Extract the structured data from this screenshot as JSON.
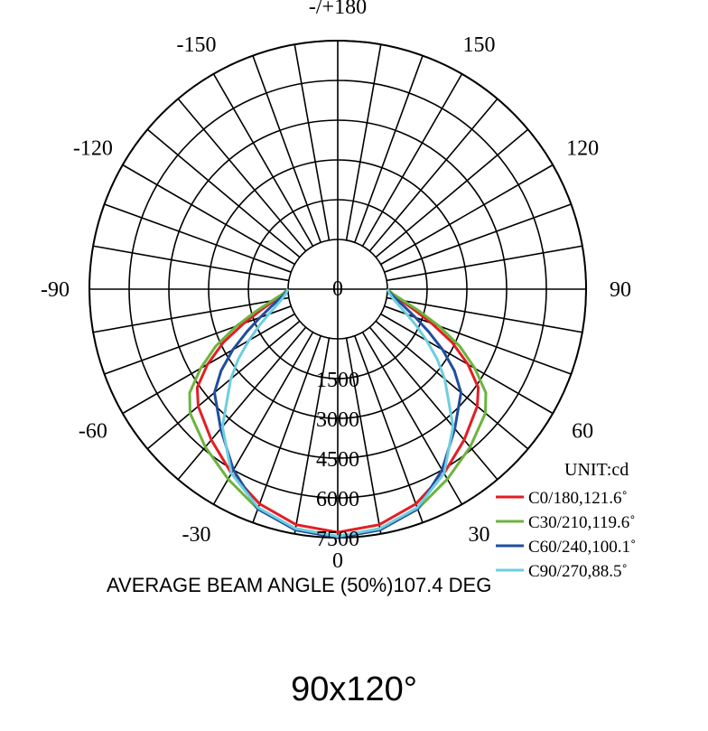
{
  "chart_data": {
    "type": "polar",
    "unit_label": "UNIT:cd",
    "angle_labels": [
      {
        "angle": 180,
        "text": "-/+180"
      },
      {
        "angle": 150,
        "text": "150"
      },
      {
        "angle": -150,
        "text": "-150"
      },
      {
        "angle": 120,
        "text": "120"
      },
      {
        "angle": -120,
        "text": "-120"
      },
      {
        "angle": 90,
        "text": "90"
      },
      {
        "angle": -90,
        "text": "-90"
      },
      {
        "angle": 60,
        "text": "60"
      },
      {
        "angle": -60,
        "text": "-60"
      },
      {
        "angle": 30,
        "text": "30"
      },
      {
        "angle": -30,
        "text": "-30"
      },
      {
        "angle": 0,
        "text": "0"
      }
    ],
    "radial_ticks": [
      "0",
      "1500",
      "3000",
      "4500",
      "6000",
      "7500"
    ],
    "r_max": 7500,
    "angle_grid_step": 10,
    "grid": true,
    "legend_position": "bottom-right",
    "beam_angle_text": "AVERAGE BEAM ANGLE (50%)107.4 DEG",
    "caption": "90x120°",
    "series": [
      {
        "name": "C0/180,121.6˚",
        "color": "#e31e24",
        "points": [
          [
            0,
            7300
          ],
          [
            10,
            7150
          ],
          [
            20,
            6750
          ],
          [
            30,
            6150
          ],
          [
            40,
            5550
          ],
          [
            50,
            5000
          ],
          [
            55,
            4600
          ],
          [
            60,
            3800
          ],
          [
            65,
            2900
          ],
          [
            70,
            1900
          ],
          [
            75,
            1100
          ],
          [
            80,
            550
          ],
          [
            85,
            200
          ],
          [
            90,
            0
          ]
        ]
      },
      {
        "name": "C30/210,119.6˚",
        "color": "#6db33f",
        "points": [
          [
            0,
            7450
          ],
          [
            10,
            7300
          ],
          [
            20,
            6950
          ],
          [
            30,
            6400
          ],
          [
            40,
            5900
          ],
          [
            50,
            5400
          ],
          [
            55,
            4950
          ],
          [
            60,
            4100
          ],
          [
            65,
            3200
          ],
          [
            70,
            2200
          ],
          [
            75,
            1300
          ],
          [
            80,
            650
          ],
          [
            85,
            220
          ],
          [
            90,
            0
          ]
        ]
      },
      {
        "name": "C60/240,100.1˚",
        "color": "#1f4e9c",
        "points": [
          [
            0,
            7500
          ],
          [
            10,
            7350
          ],
          [
            20,
            6950
          ],
          [
            30,
            6000
          ],
          [
            40,
            5000
          ],
          [
            50,
            4200
          ],
          [
            55,
            3500
          ],
          [
            60,
            2700
          ],
          [
            65,
            1900
          ],
          [
            70,
            1250
          ],
          [
            75,
            750
          ],
          [
            80,
            380
          ],
          [
            85,
            130
          ],
          [
            90,
            0
          ]
        ]
      },
      {
        "name": "C90/270,88.5˚",
        "color": "#6ecde0",
        "points": [
          [
            0,
            7450
          ],
          [
            10,
            7300
          ],
          [
            20,
            6900
          ],
          [
            30,
            6150
          ],
          [
            40,
            4900
          ],
          [
            50,
            3400
          ],
          [
            55,
            2700
          ],
          [
            60,
            2000
          ],
          [
            65,
            1400
          ],
          [
            70,
            900
          ],
          [
            75,
            520
          ],
          [
            80,
            260
          ],
          [
            85,
            90
          ],
          [
            90,
            0
          ]
        ]
      }
    ]
  }
}
